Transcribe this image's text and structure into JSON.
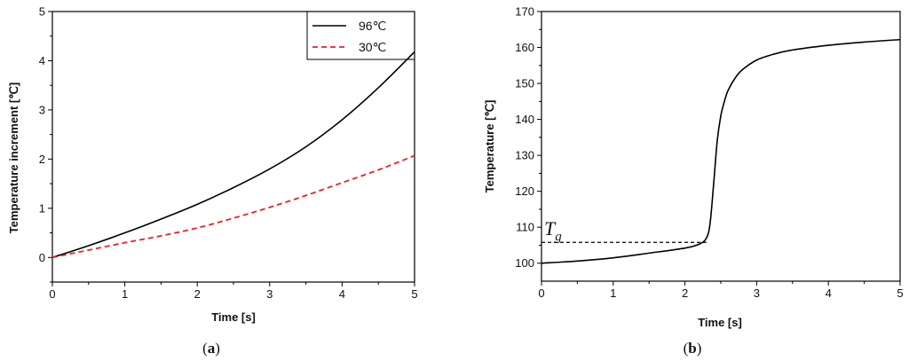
{
  "chart_data": [
    {
      "type": "line",
      "panel": "(a)",
      "caption_prefix": "(",
      "caption_letter": "a",
      "caption_suffix": ")",
      "xlabel": "Time [s]",
      "ylabel": "Temperature increment [℃]",
      "xlim": [
        0,
        5
      ],
      "ylim": [
        -0.5,
        5
      ],
      "xticks": [
        "0",
        "1",
        "2",
        "3",
        "4",
        "5"
      ],
      "yticks": [
        "0",
        "1",
        "2",
        "3",
        "4",
        "5"
      ],
      "grid": false,
      "legend_position": "top-right",
      "series": [
        {
          "name": "96℃",
          "color": "#000000",
          "style": "solid",
          "x": [
            0,
            0.5,
            1,
            1.5,
            2,
            2.5,
            3,
            3.5,
            4,
            4.5,
            5
          ],
          "y": [
            0,
            0.24,
            0.5,
            0.78,
            1.08,
            1.42,
            1.8,
            2.25,
            2.8,
            3.45,
            4.18
          ]
        },
        {
          "name": "30℃",
          "color": "#e8202a",
          "style": "dashed",
          "x": [
            0,
            0.5,
            1,
            1.5,
            2,
            2.5,
            3,
            3.5,
            4,
            4.5,
            5
          ],
          "y": [
            0,
            0.15,
            0.3,
            0.44,
            0.6,
            0.8,
            1.02,
            1.26,
            1.52,
            1.78,
            2.07
          ]
        }
      ]
    },
    {
      "type": "line",
      "panel": "(b)",
      "caption_prefix": "(",
      "caption_letter": "b",
      "caption_suffix": ")",
      "xlabel": "Time [s]",
      "ylabel": "Temperature [℃]",
      "xlim": [
        0,
        5
      ],
      "ylim": [
        95,
        170
      ],
      "xticks": [
        "0",
        "1",
        "2",
        "3",
        "4",
        "5"
      ],
      "yticks": [
        "100",
        "110",
        "120",
        "130",
        "140",
        "150",
        "160",
        "170"
      ],
      "grid": false,
      "annotation": {
        "label": "T",
        "subscript": "g",
        "value": 105.8,
        "x_end": 2.3
      },
      "series": [
        {
          "color": "#000000",
          "style": "solid",
          "x": [
            0,
            0.5,
            1,
            1.5,
            2,
            2.2,
            2.3,
            2.35,
            2.4,
            2.45,
            2.5,
            2.55,
            2.6,
            2.7,
            2.8,
            3,
            3.25,
            3.5,
            4,
            4.5,
            5
          ],
          "y": [
            100,
            100.6,
            101.5,
            102.8,
            104.2,
            105.3,
            107,
            111,
            122,
            134,
            141,
            145,
            148,
            151.5,
            153.8,
            156.5,
            158.2,
            159.3,
            160.6,
            161.5,
            162.2
          ]
        }
      ]
    }
  ]
}
